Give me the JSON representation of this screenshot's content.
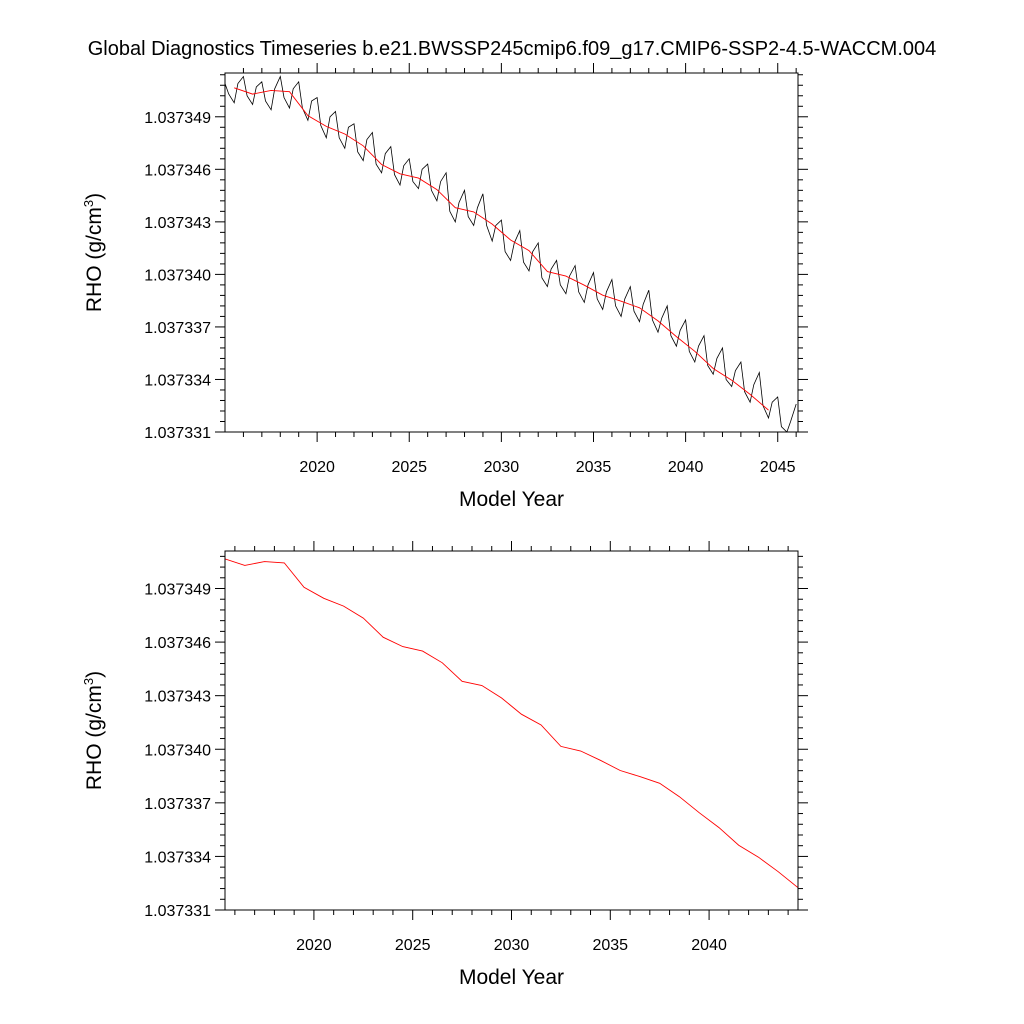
{
  "figure_title": "Global Diagnostics Timeseries b.e21.BWSSP245cmip6.f09_g17.CMIP6-SSP2-4.5-WACCM.004",
  "colors": {
    "monthly": "#000000",
    "annual": "#ff0000",
    "frame": "#000000"
  },
  "chart_data": [
    {
      "type": "line",
      "xlabel": "Model Year",
      "ylabel": "RHO (g/cm",
      "ylabel_superscript": "3",
      "ylabel_close": ")",
      "xlim": [
        2015.0,
        2046.1
      ],
      "ylim": [
        1.037331,
        1.0373515
      ],
      "x_ticks": [
        2020,
        2025,
        2030,
        2035,
        2040,
        2045
      ],
      "x_tick_labels": [
        "2020",
        "2025",
        "2030",
        "2035",
        "2040",
        "2045"
      ],
      "y_ticks": [
        1.037331,
        1.037334,
        1.037337,
        1.03734,
        1.037343,
        1.037346,
        1.037349
      ],
      "y_tick_labels": [
        "1.037331",
        "1.037334",
        "1.037337",
        "1.037340",
        "1.037343",
        "1.037346",
        "1.037349"
      ],
      "series": [
        {
          "style": "monthly",
          "x": [
            2015.0,
            2015.2,
            2015.5,
            2015.7,
            2016.0,
            2016.2,
            2016.5,
            2016.7,
            2017.0,
            2017.2,
            2017.5,
            2017.7,
            2018.0,
            2018.2,
            2018.5,
            2018.7,
            2019.0,
            2019.2,
            2019.5,
            2019.7,
            2020.0,
            2020.2,
            2020.5,
            2020.7,
            2021.0,
            2021.2,
            2021.5,
            2021.7,
            2022.0,
            2022.2,
            2022.5,
            2022.7,
            2023.0,
            2023.2,
            2023.5,
            2023.7,
            2024.0,
            2024.2,
            2024.5,
            2024.7,
            2025.0,
            2025.2,
            2025.5,
            2025.7,
            2026.0,
            2026.2,
            2026.5,
            2026.7,
            2027.0,
            2027.2,
            2027.5,
            2027.7,
            2028.0,
            2028.2,
            2028.5,
            2028.7,
            2029.0,
            2029.2,
            2029.5,
            2029.7,
            2030.0,
            2030.2,
            2030.5,
            2030.7,
            2031.0,
            2031.2,
            2031.5,
            2031.7,
            2032.0,
            2032.2,
            2032.5,
            2032.7,
            2033.0,
            2033.2,
            2033.5,
            2033.7,
            2034.0,
            2034.2,
            2034.5,
            2034.7,
            2035.0,
            2035.2,
            2035.5,
            2035.7,
            2036.0,
            2036.2,
            2036.5,
            2036.7,
            2037.0,
            2037.2,
            2037.5,
            2037.7,
            2038.0,
            2038.2,
            2038.5,
            2038.7,
            2039.0,
            2039.2,
            2039.5,
            2039.7,
            2040.0,
            2040.2,
            2040.5,
            2040.7,
            2041.0,
            2041.2,
            2041.5,
            2041.7,
            2042.0,
            2042.2,
            2042.5,
            2042.7,
            2043.0,
            2043.2,
            2043.5,
            2043.7,
            2044.0,
            2044.2,
            2044.5,
            2044.7,
            2045.0,
            2045.2,
            2045.5,
            2045.7,
            2046.0
          ],
          "y": [
            1.0373509,
            1.0373503,
            1.0373498,
            1.0373509,
            1.0373513,
            1.0373502,
            1.0373497,
            1.0373507,
            1.037351,
            1.0373499,
            1.0373494,
            1.0373506,
            1.0373513,
            1.0373501,
            1.0373495,
            1.0373506,
            1.037351,
            1.0373495,
            1.0373488,
            1.0373499,
            1.0373501,
            1.0373485,
            1.0373478,
            1.037349,
            1.0373493,
            1.0373478,
            1.0373472,
            1.0373484,
            1.0373486,
            1.037347,
            1.0373465,
            1.0373477,
            1.0373481,
            1.0373463,
            1.0373458,
            1.0373469,
            1.0373473,
            1.0373457,
            1.0373451,
            1.0373462,
            1.0373466,
            1.0373453,
            1.0373449,
            1.037346,
            1.0373463,
            1.0373448,
            1.0373442,
            1.0373453,
            1.0373458,
            1.0373436,
            1.037343,
            1.0373441,
            1.0373448,
            1.0373433,
            1.0373428,
            1.0373438,
            1.0373446,
            1.0373428,
            1.0373419,
            1.0373428,
            1.0373431,
            1.0373413,
            1.0373408,
            1.0373418,
            1.0373425,
            1.0373407,
            1.0373402,
            1.0373413,
            1.0373418,
            1.0373398,
            1.0373393,
            1.0373403,
            1.0373408,
            1.0373394,
            1.0373389,
            1.0373399,
            1.0373405,
            1.037339,
            1.0373384,
            1.0373394,
            1.0373401,
            1.0373386,
            1.037338,
            1.037339,
            1.0373397,
            1.0373382,
            1.0373376,
            1.0373386,
            1.0373393,
            1.0373379,
            1.0373373,
            1.0373383,
            1.0373391,
            1.0373374,
            1.0373367,
            1.0373375,
            1.0373382,
            1.0373365,
            1.0373359,
            1.0373368,
            1.0373374,
            1.0373356,
            1.037335,
            1.0373359,
            1.0373365,
            1.0373348,
            1.0373343,
            1.0373352,
            1.0373358,
            1.037334,
            1.0373336,
            1.0373345,
            1.037335,
            1.0373333,
            1.0373327,
            1.0373337,
            1.0373344,
            1.0373325,
            1.0373318,
            1.0373327,
            1.037333,
            1.0373313,
            1.037331,
            1.0373316,
            1.0373326
          ]
        },
        {
          "style": "annual",
          "x": [
            2015.5,
            2016.5,
            2017.5,
            2018.5,
            2019.5,
            2020.5,
            2021.5,
            2022.5,
            2023.5,
            2024.5,
            2025.5,
            2026.5,
            2027.5,
            2028.5,
            2029.5,
            2030.5,
            2031.5,
            2032.5,
            2033.5,
            2034.5,
            2035.5,
            2036.5,
            2037.5,
            2038.5,
            2039.5,
            2040.5,
            2041.5,
            2042.5,
            2043.5,
            2044.5
          ],
          "y": [
            1.037350655,
            1.037350296,
            1.037350509,
            1.037350435,
            1.037349065,
            1.037348451,
            1.037348014,
            1.037347341,
            1.037346273,
            1.037345745,
            1.037345497,
            1.037344839,
            1.037343807,
            1.037343571,
            1.037342872,
            1.037341962,
            1.037341358,
            1.037340161,
            1.037339902,
            1.037339382,
            1.037338809,
            1.037338471,
            1.037338094,
            1.037337344,
            1.037336445,
            1.037335611,
            1.037334627,
            1.037333959,
            1.037333147,
            1.037332251
          ]
        }
      ]
    },
    {
      "type": "line",
      "xlabel": "Model Year",
      "ylabel": "RHO (g/cm",
      "ylabel_superscript": "3",
      "ylabel_close": ")",
      "xlim": [
        2015.5,
        2044.5
      ],
      "ylim": [
        1.037331,
        1.0373511
      ],
      "x_ticks": [
        2020,
        2025,
        2030,
        2035,
        2040
      ],
      "x_tick_labels": [
        "2020",
        "2025",
        "2030",
        "2035",
        "2040"
      ],
      "y_ticks": [
        1.037331,
        1.037334,
        1.037337,
        1.03734,
        1.037343,
        1.037346,
        1.037349
      ],
      "y_tick_labels": [
        "1.037331",
        "1.037334",
        "1.037337",
        "1.037340",
        "1.037343",
        "1.037346",
        "1.037349"
      ],
      "series": [
        {
          "style": "annual",
          "x": [
            2015.5,
            2016.5,
            2017.5,
            2018.5,
            2019.5,
            2020.5,
            2021.5,
            2022.5,
            2023.5,
            2024.5,
            2025.5,
            2026.5,
            2027.5,
            2028.5,
            2029.5,
            2030.5,
            2031.5,
            2032.5,
            2033.5,
            2034.5,
            2035.5,
            2036.5,
            2037.5,
            2038.5,
            2039.5,
            2040.5,
            2041.5,
            2042.5,
            2043.5,
            2044.5
          ],
          "y": [
            1.037350655,
            1.037350296,
            1.037350509,
            1.037350435,
            1.037349065,
            1.037348451,
            1.037348014,
            1.037347341,
            1.037346273,
            1.037345745,
            1.037345497,
            1.037344839,
            1.037343807,
            1.037343571,
            1.037342872,
            1.037341962,
            1.037341358,
            1.037340161,
            1.037339902,
            1.037339382,
            1.037338809,
            1.037338471,
            1.037338094,
            1.037337344,
            1.037336445,
            1.037335611,
            1.037334627,
            1.037333959,
            1.037333147,
            1.037332251
          ]
        }
      ]
    }
  ]
}
